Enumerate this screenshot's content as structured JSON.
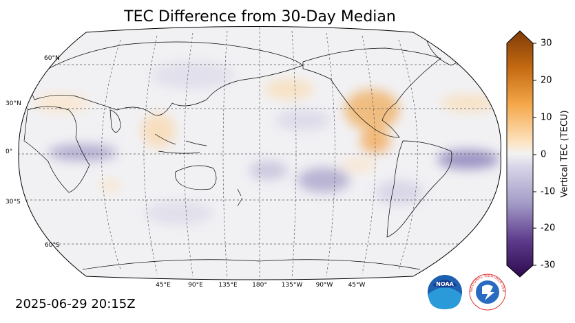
{
  "title": "TEC Difference from 30-Day Median",
  "timestamp": "2025-06-29 20:15Z",
  "colorbar": {
    "label": "Vertical TEC (TECU)",
    "ticks": [
      "30",
      "20",
      "10",
      "0",
      "-10",
      "-20",
      "-30"
    ],
    "range": [
      -30,
      30
    ],
    "colors": {
      "low": "#2d0a4e",
      "mid": "#f2f2f2",
      "high": "#7f3b08"
    }
  },
  "lat_labels": [
    "60°N",
    "30°N",
    "0°",
    "30°S",
    "60°S"
  ],
  "lon_labels": [
    "45°E",
    "90°E",
    "135°E",
    "180°",
    "135°W",
    "90°W",
    "45°W"
  ],
  "logos": [
    "noaa-logo",
    "national-weather-service-logo"
  ],
  "logo_text": {
    "noaa": "NOAA",
    "nws": "NATIONAL WEATHER SERVICE"
  }
}
